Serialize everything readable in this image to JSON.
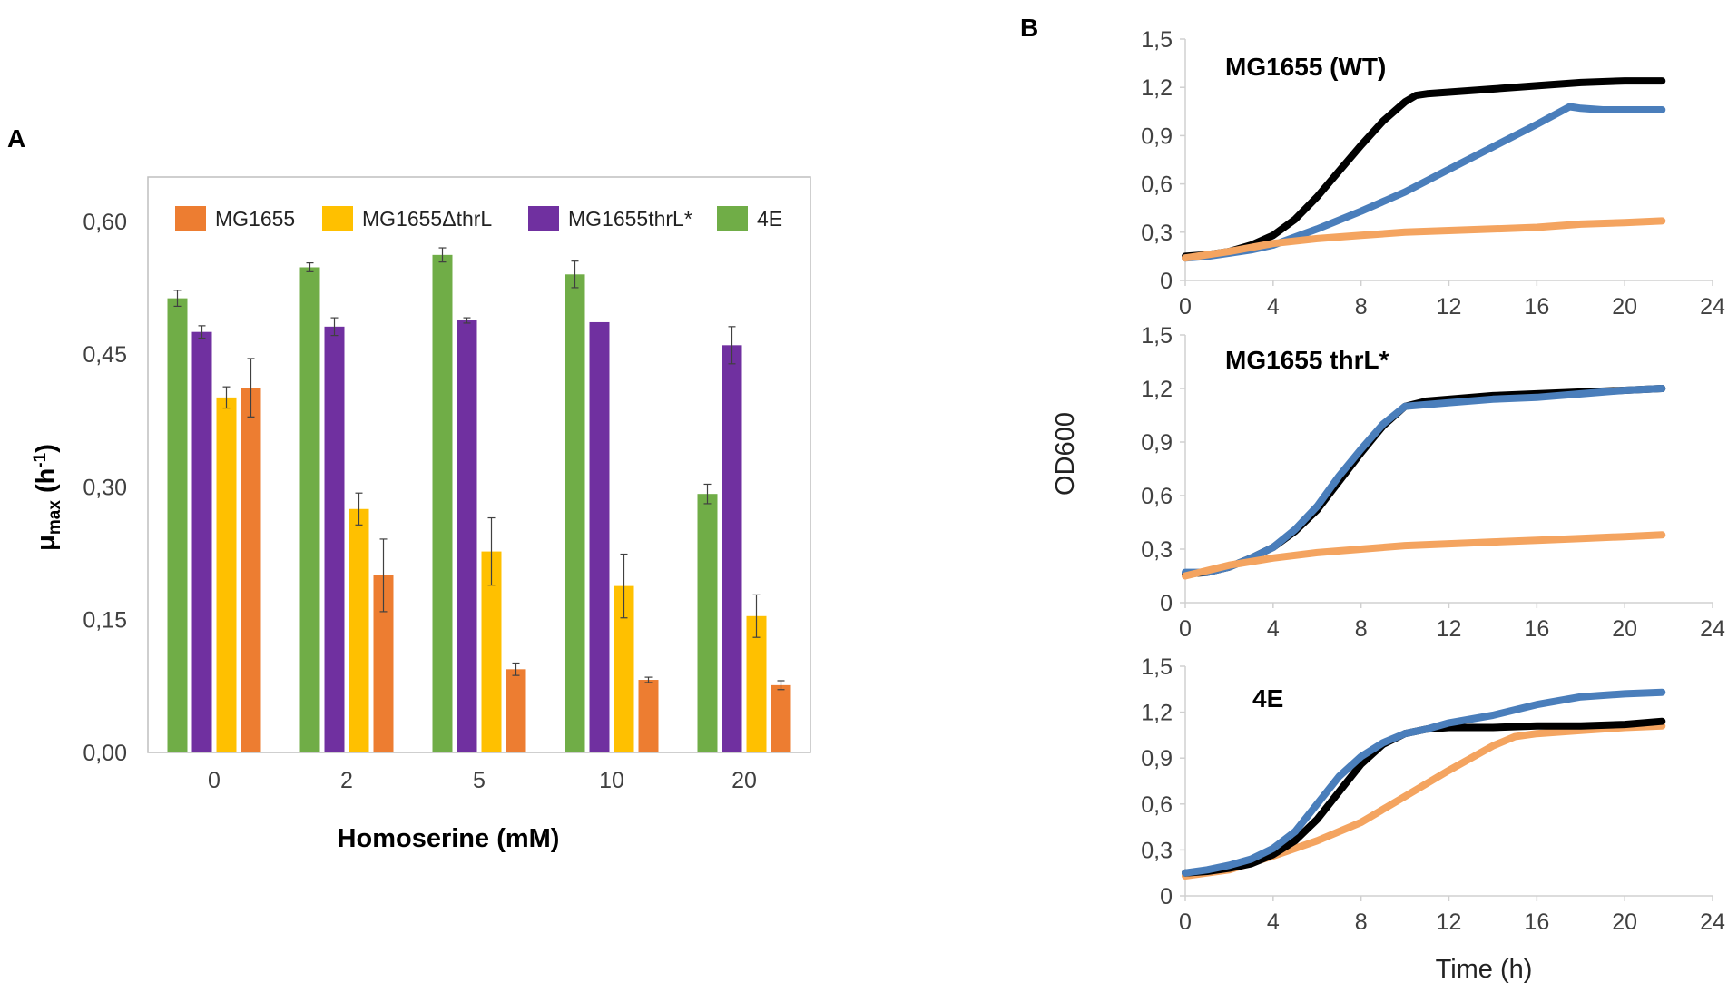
{
  "panel_labels": {
    "a": "A",
    "b": "B"
  },
  "chart_data": [
    {
      "id": "A",
      "type": "bar",
      "title": "",
      "xlabel": "Homoserine (mM)",
      "ylabel": {
        "main": "μ",
        "sub": "max",
        "unit_open": " (h",
        "unit_sup": "-1",
        "unit_close": ")"
      },
      "ylim": [
        0,
        0.65
      ],
      "yticks": [
        "0,00",
        "0,15",
        "0,30",
        "0,45",
        "0,60"
      ],
      "ytick_values": [
        0,
        0.15,
        0.3,
        0.45,
        0.6
      ],
      "categories": [
        "0",
        "2",
        "5",
        "10",
        "20"
      ],
      "legend_position": "top",
      "series": [
        {
          "name": "4E",
          "color": "#70ad47",
          "values": [
            0.513,
            0.548,
            0.562,
            0.54,
            0.292
          ],
          "errors": [
            0.009,
            0.005,
            0.008,
            0.015,
            0.011
          ]
        },
        {
          "name": "MG1655thrL*",
          "color": "#7030a0",
          "values": [
            0.475,
            0.481,
            0.488,
            0.486,
            0.46
          ],
          "errors": [
            0.007,
            0.01,
            0.003,
            0.0,
            0.021
          ]
        },
        {
          "name": "MG1655ΔthrL",
          "color": "#ffc000",
          "values": [
            0.401,
            0.275,
            0.227,
            0.188,
            0.154
          ],
          "errors": [
            0.012,
            0.018,
            0.038,
            0.036,
            0.024
          ]
        },
        {
          "name": "MG1655",
          "color": "#ed7d31",
          "values": [
            0.412,
            0.2,
            0.094,
            0.082,
            0.076
          ],
          "errors": [
            0.033,
            0.041,
            0.007,
            0.003,
            0.005
          ]
        }
      ],
      "legend_order": [
        "MG1655",
        "MG1655ΔthrL",
        "MG1655thrL*",
        "4E"
      ]
    },
    {
      "id": "B",
      "type": "line",
      "ylabel": "OD600",
      "xlabel": "Time (h)",
      "xlim": [
        0,
        24
      ],
      "ylim": [
        0,
        1.5
      ],
      "xticks": [
        "0",
        "4",
        "8",
        "12",
        "16",
        "20",
        "24"
      ],
      "xtick_values": [
        0,
        4,
        8,
        12,
        16,
        20,
        24
      ],
      "yticks": [
        "0",
        "0,3",
        "0,6",
        "0,9",
        "1,2",
        "1,5"
      ],
      "ytick_values": [
        0,
        0.3,
        0.6,
        0.9,
        1.2,
        1.5
      ],
      "series_colors": {
        "black": "#000000",
        "blue": "#4a7ebb",
        "orange": "#f4a460"
      },
      "subplots": [
        {
          "title": "MG1655 (WT)",
          "series": [
            {
              "name": "black",
              "x": [
                0,
                1,
                2,
                3,
                4,
                5,
                6,
                7,
                8,
                9,
                10,
                10.5,
                11,
                12,
                14,
                16,
                18,
                20,
                21.7
              ],
              "y": [
                0.15,
                0.16,
                0.18,
                0.22,
                0.28,
                0.38,
                0.52,
                0.68,
                0.84,
                0.99,
                1.11,
                1.15,
                1.16,
                1.17,
                1.19,
                1.21,
                1.23,
                1.24,
                1.24
              ]
            },
            {
              "name": "blue",
              "x": [
                0,
                1,
                2,
                3,
                4,
                5,
                6,
                8,
                10,
                12,
                14,
                16,
                17.5,
                18,
                19,
                20,
                21.7
              ],
              "y": [
                0.14,
                0.15,
                0.17,
                0.19,
                0.22,
                0.27,
                0.32,
                0.43,
                0.55,
                0.69,
                0.83,
                0.97,
                1.08,
                1.07,
                1.06,
                1.06,
                1.06
              ]
            },
            {
              "name": "orange",
              "x": [
                0,
                2,
                4,
                6,
                8,
                10,
                12,
                14,
                16,
                18,
                20,
                21.7
              ],
              "y": [
                0.14,
                0.18,
                0.23,
                0.26,
                0.28,
                0.3,
                0.31,
                0.32,
                0.33,
                0.35,
                0.36,
                0.37
              ]
            }
          ]
        },
        {
          "title": "MG1655 thrL*",
          "series": [
            {
              "name": "black",
              "x": [
                0,
                1,
                2,
                3,
                4,
                5,
                6,
                7,
                8,
                9,
                10,
                11,
                12,
                14,
                16,
                18,
                20,
                21.7
              ],
              "y": [
                0.16,
                0.17,
                0.2,
                0.25,
                0.31,
                0.4,
                0.52,
                0.68,
                0.84,
                0.99,
                1.1,
                1.13,
                1.14,
                1.16,
                1.17,
                1.18,
                1.19,
                1.2
              ]
            },
            {
              "name": "blue",
              "x": [
                0,
                1,
                2,
                3,
                4,
                5,
                6,
                7,
                8,
                9,
                10,
                11,
                12,
                14,
                16,
                18,
                20,
                21.7
              ],
              "y": [
                0.17,
                0.17,
                0.2,
                0.25,
                0.31,
                0.41,
                0.54,
                0.71,
                0.86,
                1.0,
                1.1,
                1.11,
                1.12,
                1.14,
                1.15,
                1.17,
                1.19,
                1.2
              ]
            },
            {
              "name": "orange",
              "x": [
                0,
                2,
                4,
                6,
                8,
                10,
                12,
                14,
                16,
                18,
                20,
                21.7
              ],
              "y": [
                0.15,
                0.21,
                0.25,
                0.28,
                0.3,
                0.32,
                0.33,
                0.34,
                0.35,
                0.36,
                0.37,
                0.38
              ]
            }
          ]
        },
        {
          "title": "4E",
          "series": [
            {
              "name": "orange",
              "x": [
                0,
                2,
                4,
                6,
                8,
                10,
                12,
                14,
                15,
                16,
                18,
                20,
                21.7
              ],
              "y": [
                0.13,
                0.17,
                0.26,
                0.36,
                0.48,
                0.65,
                0.82,
                0.98,
                1.04,
                1.06,
                1.08,
                1.1,
                1.11
              ]
            },
            {
              "name": "black",
              "x": [
                0,
                1,
                2,
                3,
                4,
                5,
                6,
                7,
                8,
                9,
                10,
                11,
                12,
                14,
                16,
                18,
                20,
                21.7
              ],
              "y": [
                0.15,
                0.16,
                0.18,
                0.21,
                0.27,
                0.36,
                0.5,
                0.68,
                0.86,
                0.99,
                1.06,
                1.09,
                1.1,
                1.1,
                1.11,
                1.11,
                1.12,
                1.14
              ]
            },
            {
              "name": "blue",
              "x": [
                0,
                1,
                2,
                3,
                4,
                5,
                6,
                7,
                8,
                9,
                10,
                11,
                12,
                14,
                16,
                18,
                20,
                21.7
              ],
              "y": [
                0.15,
                0.17,
                0.2,
                0.24,
                0.31,
                0.42,
                0.6,
                0.78,
                0.91,
                1.0,
                1.06,
                1.09,
                1.13,
                1.18,
                1.25,
                1.3,
                1.32,
                1.33
              ]
            }
          ]
        }
      ]
    }
  ]
}
